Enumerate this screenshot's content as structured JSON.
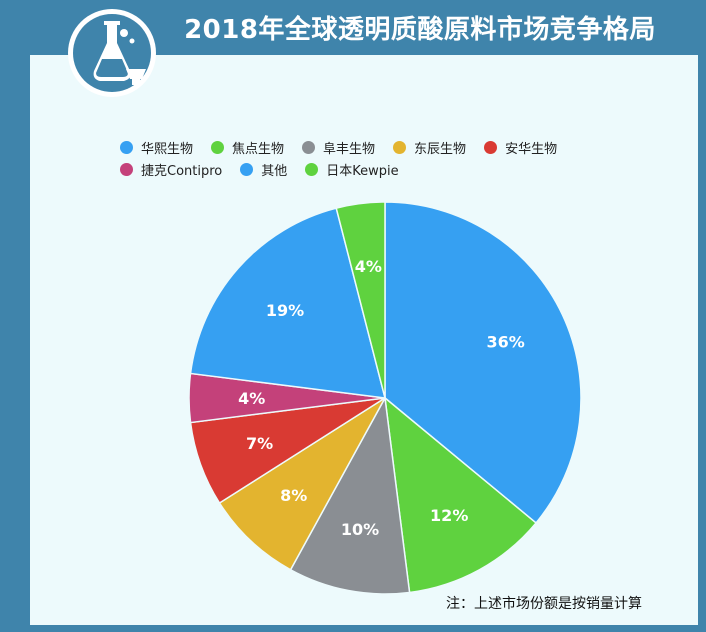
{
  "title": "2018年全球透明质酸原料市场竞争格局",
  "footnote": "注：上述市场份额是按销量计算",
  "chart_data": {
    "type": "pie",
    "labels": [
      "华熙生物",
      "焦点生物",
      "阜丰生物",
      "东辰生物",
      "安华生物",
      "捷克Contipro",
      "其他",
      "日本Kewpie"
    ],
    "values": [
      36,
      12,
      10,
      8,
      7,
      4,
      19,
      4
    ],
    "value_labels": [
      "36%",
      "12%",
      "10%",
      "8%",
      "7%",
      "4%",
      "19%",
      "4%"
    ],
    "colors": [
      "#36a0f2",
      "#5fd23f",
      "#8a8e93",
      "#e3b42f",
      "#d93a33",
      "#c4417a",
      "#36a0f2",
      "#5fd23f"
    ],
    "start": "12 o'clock",
    "direction": "clockwise",
    "legend_position": "top",
    "legend_rows": [
      [
        0,
        1,
        2,
        3,
        4
      ],
      [
        5,
        6,
        7
      ]
    ]
  },
  "logo": {
    "icon": "flask-icon"
  }
}
